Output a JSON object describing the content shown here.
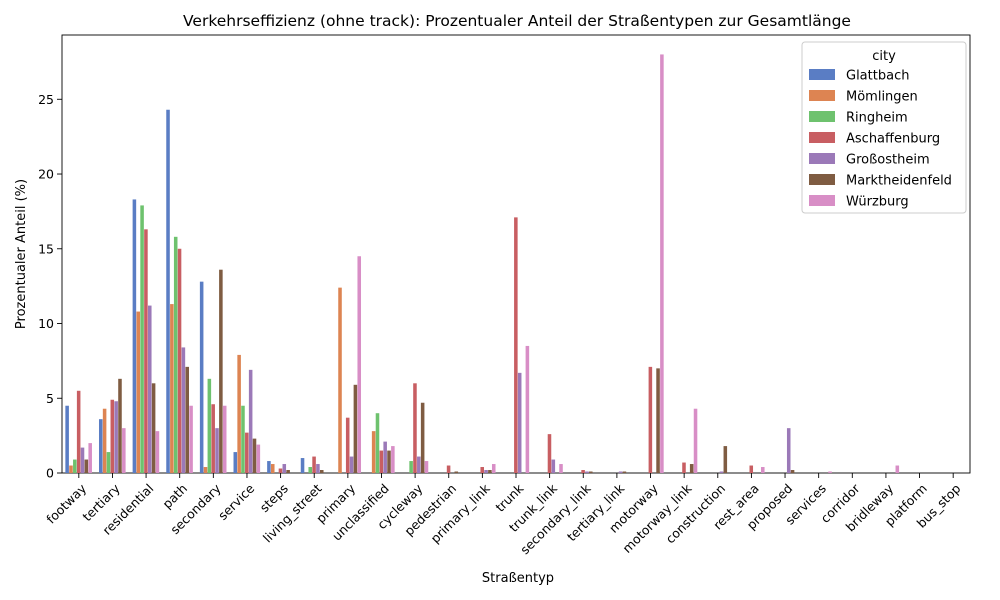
{
  "chart_data": {
    "type": "bar",
    "title": "Verkehrseffizienz (ohne track): Prozentualer Anteil der Straßentypen zur Gesamtlänge",
    "xlabel": "Straßentyp",
    "ylabel": "Prozentualer Anteil (%)",
    "ylim": [
      0,
      29.3
    ],
    "yticks": [
      0,
      5,
      10,
      15,
      20,
      25
    ],
    "legend": {
      "title": "city",
      "placement": "top-right"
    },
    "categories": [
      "footway",
      "tertiary",
      "residential",
      "path",
      "secondary",
      "service",
      "steps",
      "living_street",
      "primary",
      "unclassified",
      "cycleway",
      "pedestrian",
      "primary_link",
      "trunk",
      "trunk_link",
      "secondary_link",
      "tertiary_link",
      "motorway",
      "motorway_link",
      "construction",
      "rest_area",
      "proposed",
      "services",
      "corridor",
      "bridleway",
      "platform",
      "bus_stop"
    ],
    "series": [
      {
        "name": "Glattbach",
        "color": "#5a7dc4",
        "values": [
          4.5,
          3.6,
          18.3,
          24.3,
          12.8,
          1.4,
          0.8,
          1.0,
          0,
          0,
          0,
          0,
          0,
          0,
          0,
          0,
          0,
          0,
          0,
          0,
          0,
          0,
          0,
          0,
          0,
          0,
          0
        ]
      },
      {
        "name": "Mömlingen",
        "color": "#dd8452",
        "values": [
          0.5,
          4.3,
          10.8,
          11.3,
          0.4,
          7.9,
          0.6,
          0,
          12.4,
          2.8,
          0,
          0,
          0,
          0,
          0,
          0,
          0,
          0,
          0,
          0,
          0,
          0,
          0,
          0,
          0,
          0,
          0
        ]
      },
      {
        "name": "Ringheim",
        "color": "#6ec26e",
        "values": [
          0.9,
          1.4,
          17.9,
          15.8,
          6.3,
          4.5,
          0,
          0.4,
          0,
          4.0,
          0.8,
          0,
          0,
          0,
          0,
          0,
          0,
          0,
          0,
          0,
          0,
          0,
          0,
          0,
          0,
          0,
          0
        ]
      },
      {
        "name": "Aschaffenburg",
        "color": "#c85e62",
        "values": [
          5.5,
          4.9,
          16.3,
          15.0,
          4.6,
          2.7,
          0.3,
          1.1,
          3.7,
          1.5,
          6.0,
          0.5,
          0.4,
          17.1,
          2.6,
          0.2,
          0,
          7.1,
          0.7,
          0,
          0.5,
          0,
          0,
          0,
          0,
          0,
          0
        ]
      },
      {
        "name": "Großostheim",
        "color": "#9b79b8",
        "values": [
          1.7,
          4.8,
          11.2,
          8.4,
          3.0,
          6.9,
          0.6,
          0.6,
          1.1,
          2.1,
          1.1,
          0,
          0.2,
          6.7,
          0.9,
          0.1,
          0.1,
          0,
          0,
          0.1,
          0,
          3.0,
          0,
          0,
          0,
          0,
          0
        ]
      },
      {
        "name": "Marktheidenfeld",
        "color": "#7f5c42",
        "values": [
          0.9,
          6.3,
          6.0,
          7.1,
          13.6,
          2.3,
          0.2,
          0.2,
          5.9,
          1.5,
          4.7,
          0.1,
          0.2,
          0,
          0,
          0.1,
          0.1,
          7.0,
          0.6,
          1.8,
          0,
          0.2,
          0,
          0,
          0,
          0,
          0
        ]
      },
      {
        "name": "Würzburg",
        "color": "#d88ec6",
        "values": [
          2.0,
          3.0,
          2.8,
          4.5,
          4.5,
          1.9,
          0,
          0,
          14.5,
          1.8,
          0.8,
          0,
          0.6,
          8.5,
          0.6,
          0,
          0,
          28.0,
          4.3,
          0,
          0.4,
          0,
          0.1,
          0,
          0.5,
          0,
          0
        ]
      }
    ]
  }
}
